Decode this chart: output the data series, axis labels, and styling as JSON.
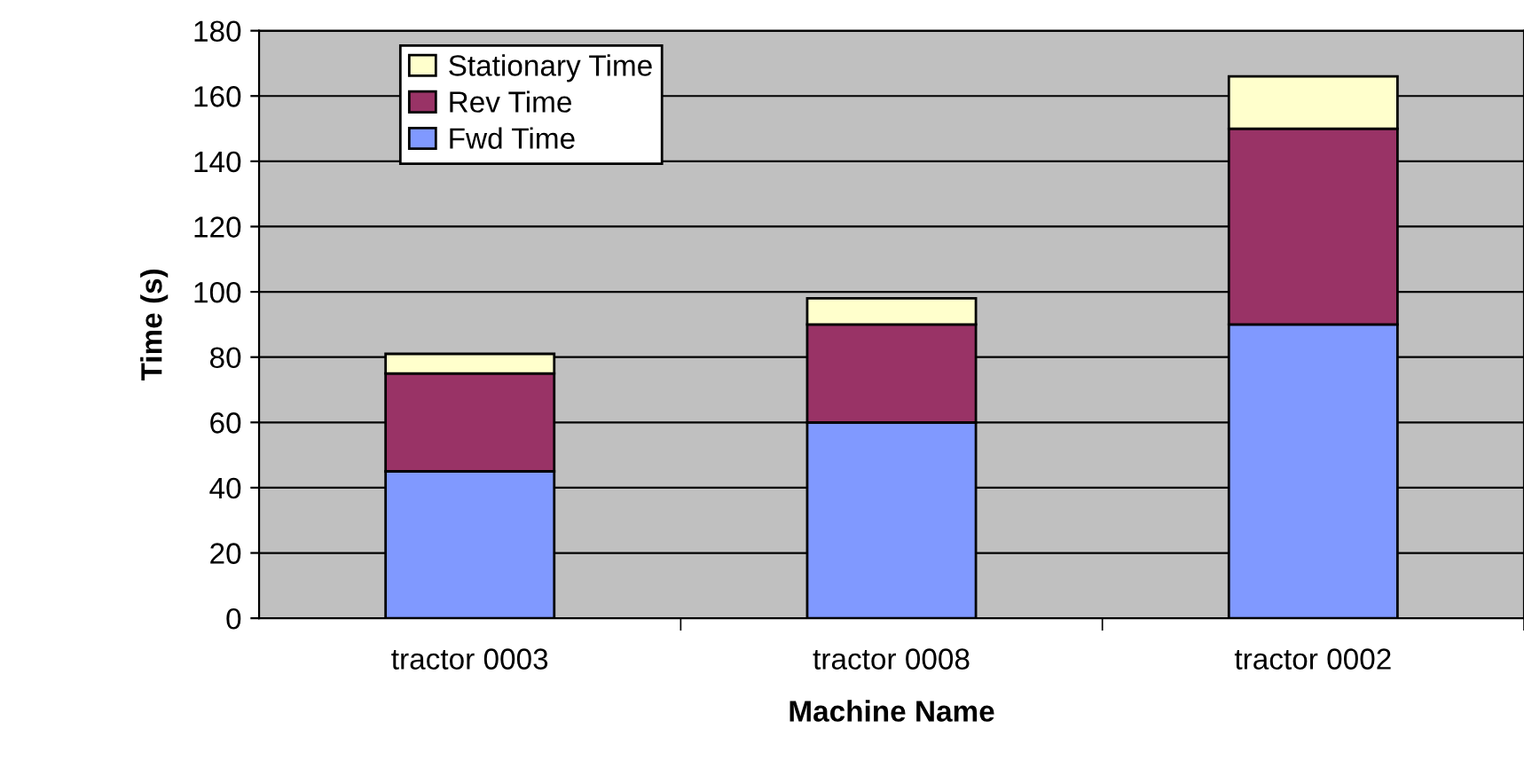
{
  "chart_data": {
    "type": "bar",
    "stacked": true,
    "xlabel": "Machine Name",
    "ylabel": "Time (s)",
    "categories": [
      "tractor 0003",
      "tractor 0008",
      "tractor 0002"
    ],
    "series": [
      {
        "name": "Fwd Time",
        "color": "#8099ff",
        "values": [
          45,
          60,
          90
        ]
      },
      {
        "name": "Rev Time",
        "color": "#993366",
        "values": [
          30,
          30,
          60
        ]
      },
      {
        "name": "Stationary Time",
        "color": "#ffffcc",
        "values": [
          6,
          8,
          16
        ]
      }
    ],
    "ylim": [
      0,
      180
    ],
    "yticks": [
      0,
      20,
      40,
      60,
      80,
      100,
      120,
      140,
      160,
      180
    ],
    "grid": "y",
    "legend": "top left"
  }
}
